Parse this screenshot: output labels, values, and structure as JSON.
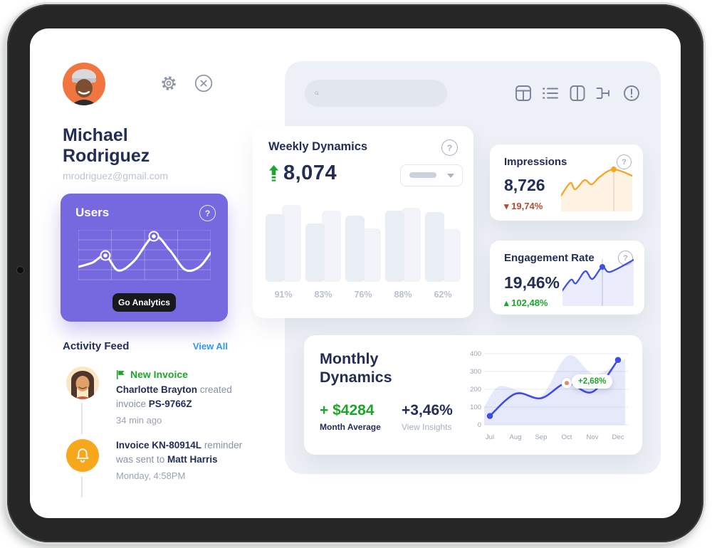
{
  "colors": {
    "accent_purple": "#7668de",
    "navy": "#232e54",
    "green": "#1ea52b",
    "red": "#b54b31",
    "orange": "#f6a623",
    "blue": "#3d4ee2",
    "link_blue": "#2f96f2",
    "panel_bg": "#edf0f6",
    "muted": "#9aa3b5"
  },
  "profile": {
    "first_name": "Michael",
    "last_name": "Rodriguez",
    "email": "mrodriguez@gmail.com"
  },
  "users_card": {
    "title": "Users",
    "help": "?",
    "button_label": "Go Analytics"
  },
  "activity_feed": {
    "title": "Activity Feed",
    "view_all": "View All",
    "item1": {
      "badge": "New Invoice",
      "actor": "Charlotte Brayton",
      "action": " created",
      "line2_prefix": "invoice ",
      "invoice_id": "PS-9766Z",
      "time": "34 min ago"
    },
    "item2": {
      "invoice": "Invoice KN-80914L",
      "action1": " reminder",
      "action2": "was sent to ",
      "recipient": "Matt Harris",
      "time": "Monday, 4:58PM"
    }
  },
  "weekly": {
    "title": "Weekly Dynamics",
    "value": "8,074",
    "help": "?"
  },
  "impressions": {
    "title": "Impressions",
    "value": "8,726",
    "delta_dir": "▾",
    "delta": "19,74%",
    "help": "?"
  },
  "engagement": {
    "title": "Engagement Rate",
    "value": "19,46%",
    "delta_dir": "▴",
    "delta": "102,48%",
    "help": "?"
  },
  "monthly": {
    "title1": "Monthly",
    "title2": "Dynamics",
    "avg": "+ $4284",
    "avg_label": "Month Average",
    "pct": "+3,46%",
    "pct_label": "View Insights",
    "tooltip": "+2,68%"
  },
  "chart_data": [
    {
      "id": "users",
      "type": "line",
      "points": [
        [
          0,
          52
        ],
        [
          20,
          46
        ],
        [
          38,
          36
        ],
        [
          56,
          57
        ],
        [
          78,
          44
        ],
        [
          106,
          9
        ],
        [
          128,
          28
        ],
        [
          150,
          56
        ],
        [
          170,
          52
        ],
        [
          186,
          32
        ]
      ],
      "markers": [
        2,
        5
      ],
      "grid": {
        "cols": 4,
        "rows": 5,
        "w": 186,
        "h": 70
      },
      "stroke": "#ffffff",
      "marker_fill": "#7668de"
    },
    {
      "id": "weekly-bars",
      "type": "bar",
      "categories": [
        "91%",
        "83%",
        "76%",
        "88%",
        "62%"
      ],
      "series": [
        {
          "name": "front",
          "values": [
            95,
            82,
            93,
            100,
            98
          ]
        },
        {
          "name": "back",
          "values": [
            108,
            100,
            75,
            104,
            74
          ]
        }
      ],
      "front_color": "#e9edf4",
      "back_color": "#f1f3f8",
      "label_color": "#b9c0cd"
    },
    {
      "id": "impressions-spark",
      "type": "area",
      "h": 66,
      "points": [
        [
          0,
          44
        ],
        [
          13,
          26
        ],
        [
          20,
          35
        ],
        [
          33,
          22
        ],
        [
          43,
          28
        ],
        [
          55,
          17
        ],
        [
          74,
          7
        ],
        [
          100,
          16
        ]
      ],
      "marker": 6,
      "stroke": "#f6a623",
      "fill": "rgba(246,166,35,0.13)",
      "marker_fill": "#f6a623",
      "vline": "#dfe3ea"
    },
    {
      "id": "engagement-spark",
      "type": "area",
      "h": 68,
      "points": [
        [
          0,
          46
        ],
        [
          12,
          31
        ],
        [
          19,
          36
        ],
        [
          32,
          19
        ],
        [
          42,
          30
        ],
        [
          56,
          13
        ],
        [
          67,
          20
        ],
        [
          100,
          3
        ]
      ],
      "marker": 5,
      "stroke": "#4152e3",
      "fill": "rgba(65,82,227,0.10)",
      "marker_fill": "#4152e3",
      "vline": "#d9dde5"
    },
    {
      "id": "monthly",
      "type": "line+area",
      "title": "Monthly Dynamics",
      "x_labels": [
        "Jul",
        "Aug",
        "Sep",
        "Oct",
        "Nov",
        "Dec"
      ],
      "month_x": [
        28,
        64,
        100,
        136,
        172,
        208
      ],
      "y_ticks": [
        0,
        100,
        200,
        300,
        400
      ],
      "ylim": [
        0,
        400
      ],
      "line_values": [
        50,
        175,
        150,
        235,
        185,
        365
      ],
      "area_points": [
        [
          20,
          100
        ],
        [
          40,
          215
        ],
        [
          70,
          190
        ],
        [
          100,
          160
        ],
        [
          138,
          390
        ],
        [
          175,
          285
        ],
        [
          218,
          370
        ]
      ],
      "marker_special_index": 3,
      "dot_indices": [
        0,
        5
      ],
      "line_color": "#3d4ee2",
      "area_fill": "rgba(99,122,224,0.17)",
      "grid_color": "#e7eaf0",
      "tick_color": "#9aa2b2",
      "special_dot": "#e08963"
    }
  ]
}
